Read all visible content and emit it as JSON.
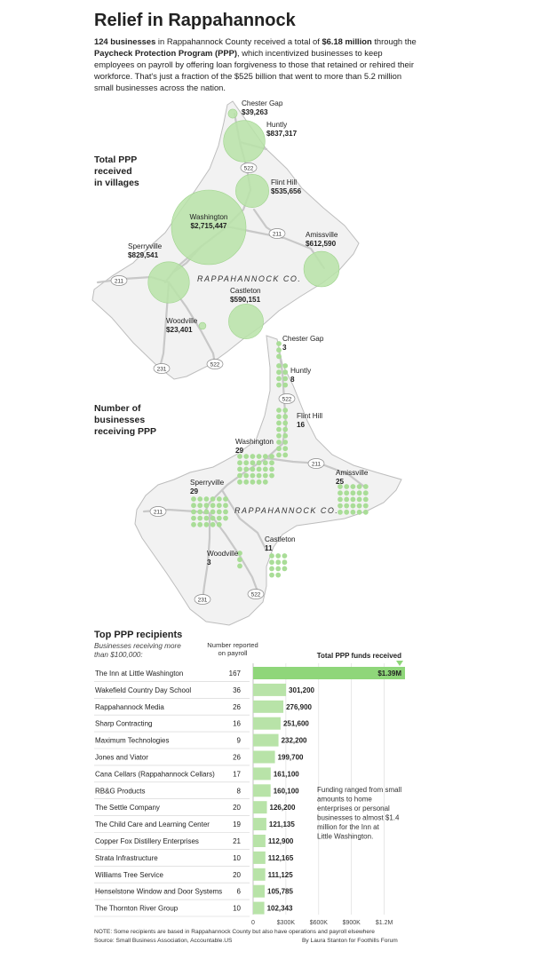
{
  "header": {
    "title": "Relief in Rappahannock",
    "intro": {
      "count": "124 businesses",
      "t1": " in Rappahannock County received a total of ",
      "total": "$6.18 million",
      "t2": " through the ",
      "program": "Paycheck Protection Program (PPP)",
      "t3": ", which incentivized businesses to keep employees on payroll by offering loan forgiveness to those that retained or rehired their workforce. That's just a fraction of the $525 billion that went to more than 5.2 million small businesses across the nation."
    }
  },
  "map_total": {
    "section_label": [
      "Total PPP",
      "received",
      "in villages"
    ],
    "county_label": "RAPPAHANNOCK CO.",
    "villages": [
      {
        "name": "Chester Gap",
        "amount": "$39,263",
        "value": 39263
      },
      {
        "name": "Huntly",
        "amount": "$837,317",
        "value": 837317
      },
      {
        "name": "Flint Hill",
        "amount": "$535,656",
        "value": 535656
      },
      {
        "name": "Washington",
        "amount": "$2,715,447",
        "value": 2715447
      },
      {
        "name": "Amissville",
        "amount": "$612,590",
        "value": 612590
      },
      {
        "name": "Sperryville",
        "amount": "$829,541",
        "value": 829541
      },
      {
        "name": "Castleton",
        "amount": "$590,151",
        "value": 590151
      },
      {
        "name": "Woodville",
        "amount": "$23,401",
        "value": 23401
      }
    ],
    "routes": [
      "522",
      "211",
      "211",
      "231",
      "522"
    ]
  },
  "map_count": {
    "section_label": [
      "Number of",
      "businesses",
      "receiving PPP"
    ],
    "county_label": "RAPPAHANNOCK CO.",
    "villages": [
      {
        "name": "Chester Gap",
        "count": 3
      },
      {
        "name": "Huntly",
        "count": 8
      },
      {
        "name": "Flint Hill",
        "count": 16
      },
      {
        "name": "Washington",
        "count": 29
      },
      {
        "name": "Amissville",
        "count": 25
      },
      {
        "name": "Sperryville",
        "count": 29
      },
      {
        "name": "Castleton",
        "count": 11
      },
      {
        "name": "Woodville",
        "count": 3
      }
    ],
    "routes": [
      "522",
      "211",
      "211",
      "231",
      "522"
    ]
  },
  "chart_data": {
    "type": "bar",
    "title": "Top PPP recipients",
    "subtitle": "Businesses receiving more than $100,000:",
    "payroll_header": "Number reported on payroll",
    "value_header": "Total PPP funds received",
    "categories": [
      "The Inn at Little Washington",
      "Wakefield Country Day School",
      "Rappahannock Media",
      "Sharp Contracting",
      "Maximum Technologies",
      "Jones and Viator",
      "Cana Cellars (Rappahannock Cellars)",
      "RB&G Products",
      "The Settle Company",
      "The Child Care and Learning Center",
      "Copper Fox Distillery Enterprises",
      "Strata Infrastructure",
      "Williams Tree Service",
      "Henselstone Window and Door Systems",
      "The Thornton River Group"
    ],
    "payroll": [
      167,
      36,
      26,
      16,
      9,
      26,
      17,
      8,
      20,
      19,
      21,
      10,
      20,
      6,
      10
    ],
    "values": [
      1390000,
      301200,
      276900,
      251600,
      232200,
      199700,
      161100,
      160100,
      126200,
      121135,
      112900,
      112165,
      111125,
      105785,
      102343
    ],
    "value_labels": [
      "$1.39M",
      "301,200",
      "276,900",
      "251,600",
      "232,200",
      "199,700",
      "161,100",
      "160,100",
      "126,200",
      "121,135",
      "112,900",
      "112,165",
      "111,125",
      "105,785",
      "102,343"
    ],
    "xlim": [
      0,
      1390000
    ],
    "xticks": [
      0,
      300000,
      600000,
      900000,
      1200000
    ],
    "xtick_labels": [
      "0",
      "$300K",
      "$600K",
      "$900K",
      "$1.2M"
    ],
    "annotation": "Funding ranged from small amounts to home enterprises or personal businesses to almost $1.4 million for the Inn at Little Washington.",
    "grid": true,
    "bar_color": "#b8e3a8",
    "accent_color": "#8fd67a"
  },
  "footer": {
    "note": "NOTE: Some recipients are based in Rappahannock County but also have operations and payroll elsewhere",
    "source": "Source: Small Business Association, Accountable.US",
    "credit": "By Laura Stanton for Foothills Forum"
  }
}
